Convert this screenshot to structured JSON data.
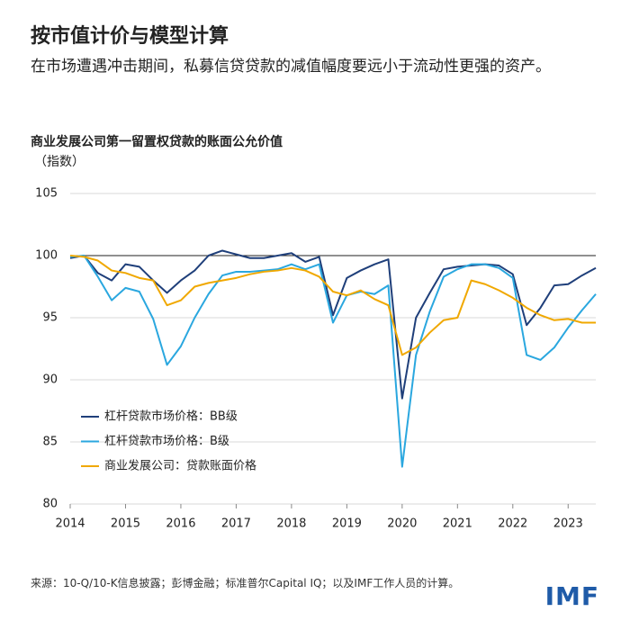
{
  "header": {
    "title": "按市值计价与模型计算",
    "subtitle": "在市场遭遇冲击期间，私募信贷贷款的减值幅度要远小于流动性更强的资产。"
  },
  "chart_data": {
    "type": "line",
    "title": "商业发展公司第一留置权贷款的账面公允价值",
    "y_label": "（指数）",
    "x": [
      2014.0,
      2014.25,
      2014.5,
      2014.75,
      2015.0,
      2015.25,
      2015.5,
      2015.75,
      2016.0,
      2016.25,
      2016.5,
      2016.75,
      2017.0,
      2017.25,
      2017.5,
      2017.75,
      2018.0,
      2018.25,
      2018.5,
      2018.75,
      2019.0,
      2019.25,
      2019.5,
      2019.75,
      2020.0,
      2020.25,
      2020.5,
      2020.75,
      2021.0,
      2021.25,
      2021.5,
      2021.75,
      2022.0,
      2022.25,
      2022.5,
      2022.75,
      2023.0,
      2023.25,
      2023.5
    ],
    "series": [
      {
        "name": "杠杆贷款市场价格：BB级",
        "color": "#1f3f7a",
        "values": [
          99.8,
          100.0,
          98.6,
          98.0,
          99.3,
          99.1,
          98.0,
          97.0,
          98.0,
          98.8,
          100.0,
          100.4,
          100.1,
          99.8,
          99.8,
          100.0,
          100.2,
          99.5,
          99.9,
          95.2,
          98.2,
          98.8,
          99.3,
          99.7,
          88.5,
          95.0,
          97.0,
          98.9,
          99.1,
          99.2,
          99.3,
          99.2,
          98.5,
          94.4,
          95.8,
          97.6,
          97.7,
          98.4,
          99.0
        ]
      },
      {
        "name": "杠杆贷款市场价格：B级",
        "color": "#2aa7df",
        "values": [
          99.9,
          100.0,
          98.3,
          96.4,
          97.4,
          97.1,
          94.9,
          91.2,
          92.7,
          95.0,
          96.9,
          98.4,
          98.7,
          98.7,
          98.8,
          98.9,
          99.3,
          98.9,
          99.3,
          94.6,
          96.8,
          97.1,
          96.9,
          97.6,
          83.0,
          92.0,
          95.5,
          98.3,
          98.9,
          99.3,
          99.3,
          99.0,
          98.2,
          92.0,
          91.6,
          92.6,
          94.2,
          95.6,
          96.9
        ]
      },
      {
        "name": "商业发展公司：贷款账面价格",
        "color": "#f0a800",
        "values": [
          100.0,
          99.9,
          99.6,
          98.8,
          98.6,
          98.2,
          98.0,
          96.0,
          96.4,
          97.5,
          97.8,
          98.0,
          98.2,
          98.5,
          98.7,
          98.8,
          99.0,
          98.8,
          98.3,
          97.1,
          96.8,
          97.2,
          96.5,
          96.0,
          92.0,
          92.6,
          93.8,
          94.8,
          95.0,
          98.0,
          97.7,
          97.2,
          96.6,
          95.8,
          95.2,
          94.8,
          94.9,
          94.6,
          94.6
        ]
      }
    ],
    "xlim": [
      2014,
      2023.5
    ],
    "xticks": [
      2014,
      2015,
      2016,
      2017,
      2018,
      2019,
      2020,
      2021,
      2022,
      2023
    ],
    "ylim": [
      80,
      105
    ],
    "yticks": [
      80,
      85,
      90,
      95,
      100,
      105
    ],
    "reference_line": 100,
    "grid": true,
    "legend": "lower left"
  },
  "footer": {
    "source": "来源：10-Q/10-K信息披露；彭博金融；标准普尔Capital IQ；以及IMF工作人员的计算。",
    "logo": "IMF"
  }
}
